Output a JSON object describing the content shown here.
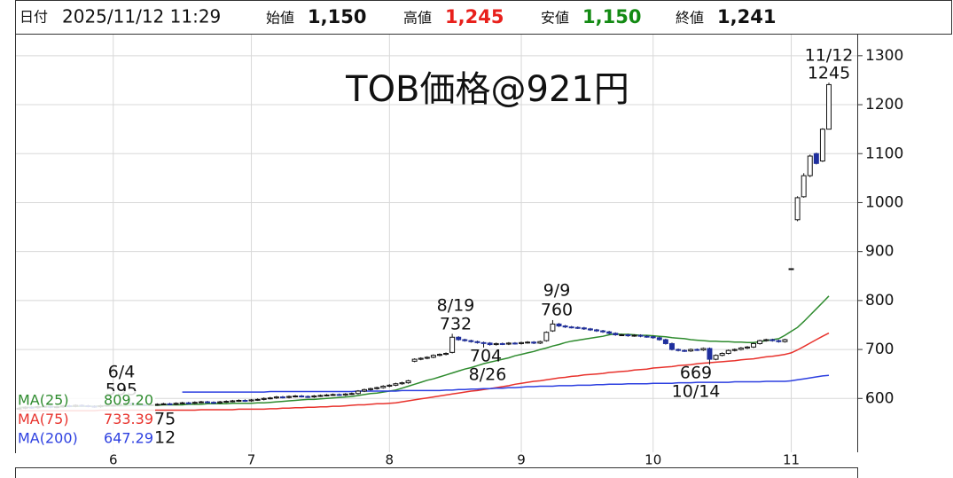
{
  "header": {
    "date_label": "日付",
    "date": "2025/11/12 11:29",
    "open_label": "始値",
    "open": "1,150",
    "high_label": "高値",
    "high": "1,245",
    "low_label": "安値",
    "low": "1,150",
    "close_label": "終値",
    "close": "1,241"
  },
  "chart_data": {
    "type": "candlestick",
    "title": "TOB価格@921円",
    "categories": [
      null,
      null,
      null,
      null,
      null,
      null,
      null,
      null,
      null,
      null,
      null,
      null,
      null,
      null,
      null,
      "6",
      null,
      null,
      null,
      null,
      null,
      null,
      null,
      null,
      null,
      null,
      null,
      null,
      null,
      null,
      null,
      null,
      null,
      null,
      null,
      null,
      null,
      "7",
      null,
      null,
      null,
      null,
      null,
      null,
      null,
      null,
      null,
      null,
      null,
      null,
      null,
      null,
      null,
      null,
      null,
      null,
      null,
      null,
      null,
      "8",
      null,
      null,
      null,
      null,
      null,
      null,
      null,
      null,
      null,
      null,
      null,
      null,
      null,
      null,
      null,
      null,
      null,
      null,
      null,
      null,
      "9",
      null,
      null,
      null,
      null,
      null,
      null,
      null,
      null,
      null,
      null,
      null,
      null,
      null,
      null,
      null,
      null,
      null,
      null,
      null,
      null,
      "10",
      null,
      null,
      null,
      null,
      null,
      null,
      null,
      null,
      null,
      null,
      null,
      null,
      null,
      null,
      null,
      null,
      null,
      null,
      null,
      null,
      null,
      "11",
      null,
      null,
      null,
      null,
      null,
      null
    ],
    "open": [
      579,
      580,
      582,
      581,
      583,
      584,
      582,
      583,
      585,
      584,
      586,
      585,
      584,
      583,
      585,
      586,
      586,
      588,
      590,
      588,
      587,
      586,
      587,
      588,
      589,
      588,
      590,
      591,
      590,
      592,
      593,
      592,
      591,
      593,
      594,
      595,
      596,
      595,
      597,
      598,
      600,
      601,
      603,
      602,
      604,
      605,
      604,
      603,
      605,
      606,
      607,
      608,
      607,
      609,
      610,
      615,
      618,
      620,
      622,
      625,
      627,
      630,
      632,
      676,
      680,
      682,
      684,
      688,
      690,
      694,
      725,
      720,
      718,
      716,
      714,
      713,
      710,
      712,
      711,
      713,
      712,
      714,
      715,
      713,
      718,
      738,
      752,
      748,
      746,
      745,
      744,
      742,
      740,
      738,
      736,
      733,
      730,
      730,
      728,
      729,
      727,
      726,
      724,
      720,
      712,
      700,
      698,
      697,
      700,
      699,
      702,
      680,
      688,
      692,
      698,
      700,
      703,
      705,
      712,
      718,
      720,
      718,
      716,
      865,
      965,
      1012,
      1055,
      1100,
      1085,
      1150
    ],
    "high": [
      582,
      584,
      584,
      585,
      586,
      586,
      585,
      587,
      587,
      588,
      588,
      587,
      586,
      587,
      588,
      588,
      590,
      595,
      592,
      590,
      589,
      589,
      590,
      591,
      591,
      592,
      593,
      593,
      594,
      595,
      595,
      594,
      595,
      596,
      597,
      598,
      598,
      599,
      600,
      602,
      603,
      605,
      605,
      606,
      607,
      607,
      606,
      607,
      608,
      609,
      610,
      610,
      611,
      612,
      617,
      620,
      622,
      624,
      627,
      629,
      632,
      634,
      638,
      682,
      684,
      686,
      690,
      692,
      694,
      732,
      727,
      722,
      720,
      718,
      716,
      715,
      714,
      714,
      715,
      715,
      716,
      717,
      717,
      718,
      737,
      760,
      754,
      750,
      748,
      747,
      746,
      744,
      742,
      740,
      738,
      735,
      732,
      732,
      731,
      731,
      729,
      728,
      726,
      722,
      714,
      702,
      700,
      702,
      702,
      704,
      704,
      690,
      694,
      700,
      702,
      705,
      707,
      714,
      720,
      722,
      722,
      720,
      722,
      865,
      1013,
      1060,
      1098,
      1102,
      1152,
      1245
    ],
    "low": [
      577,
      578,
      579,
      579,
      581,
      580,
      580,
      581,
      582,
      582,
      583,
      582,
      581,
      581,
      583,
      584,
      584,
      586,
      586,
      585,
      584,
      584,
      585,
      586,
      586,
      586,
      588,
      588,
      588,
      590,
      590,
      589,
      589,
      591,
      592,
      593,
      593,
      593,
      595,
      596,
      598,
      599,
      600,
      600,
      602,
      602,
      601,
      601,
      603,
      604,
      605,
      605,
      605,
      607,
      608,
      613,
      616,
      618,
      620,
      623,
      625,
      628,
      630,
      674,
      678,
      680,
      682,
      686,
      688,
      692,
      718,
      716,
      714,
      712,
      704,
      708,
      708,
      709,
      709,
      710,
      710,
      712,
      711,
      711,
      716,
      736,
      746,
      744,
      743,
      742,
      740,
      738,
      736,
      734,
      731,
      728,
      728,
      726,
      726,
      725,
      724,
      722,
      718,
      710,
      698,
      696,
      695,
      695,
      697,
      697,
      669,
      678,
      686,
      690,
      696,
      698,
      701,
      703,
      710,
      716,
      716,
      714,
      714,
      865,
      962,
      1010,
      1052,
      1078,
      1083,
      1150
    ],
    "close": [
      580,
      582,
      581,
      583,
      584,
      582,
      583,
      585,
      584,
      586,
      585,
      584,
      583,
      585,
      586,
      586,
      588,
      590,
      588,
      587,
      586,
      587,
      588,
      589,
      588,
      590,
      591,
      590,
      592,
      593,
      592,
      591,
      593,
      594,
      595,
      596,
      595,
      597,
      598,
      600,
      601,
      603,
      602,
      604,
      605,
      604,
      603,
      605,
      606,
      607,
      608,
      607,
      609,
      610,
      615,
      618,
      620,
      622,
      625,
      627,
      630,
      632,
      636,
      680,
      682,
      684,
      688,
      690,
      692,
      725,
      720,
      718,
      716,
      714,
      713,
      710,
      712,
      711,
      713,
      712,
      714,
      715,
      713,
      716,
      735,
      752,
      748,
      746,
      745,
      744,
      742,
      740,
      738,
      736,
      733,
      730,
      730,
      728,
      729,
      727,
      726,
      724,
      720,
      712,
      700,
      698,
      697,
      700,
      699,
      702,
      680,
      688,
      692,
      698,
      700,
      703,
      705,
      712,
      718,
      720,
      718,
      716,
      720,
      865,
      1010,
      1055,
      1095,
      1080,
      1150,
      1241
    ],
    "up_color": "#ffffff",
    "down_color": "#1f2f9e",
    "series": [
      {
        "name": "MA(25)",
        "color": "#2e8b2e",
        "legend_value": "809.20",
        "values": [
          582,
          582,
          582,
          583,
          583,
          583,
          583,
          583,
          584,
          584,
          584,
          584,
          584,
          585,
          585,
          585,
          585,
          585,
          586,
          586,
          586,
          586,
          586,
          587,
          587,
          587,
          587,
          588,
          588,
          588,
          589,
          589,
          589,
          589,
          590,
          590,
          590,
          590,
          591,
          591,
          592,
          593,
          594,
          595,
          596,
          597,
          598,
          598,
          599,
          600,
          601,
          602,
          603,
          604,
          606,
          608,
          610,
          611,
          613,
          615,
          617,
          621,
          625,
          629,
          633,
          637,
          640,
          644,
          648,
          652,
          656,
          660,
          663,
          667,
          671,
          674,
          677,
          680,
          683,
          687,
          690,
          693,
          696,
          700,
          703,
          707,
          710,
          714,
          717,
          719,
          721,
          723,
          725,
          727,
          730,
          732,
          731,
          731,
          730,
          729,
          729,
          728,
          727,
          726,
          724,
          723,
          722,
          720,
          719,
          718,
          717,
          717,
          716,
          716,
          715,
          715,
          714,
          714,
          716,
          718,
          720,
          722,
          729,
          737,
          745,
          757,
          770,
          783,
          796,
          809.2
        ]
      },
      {
        "name": "MA(75)",
        "color": "#e8322c",
        "legend_value": "733.39",
        "values": [
          575,
          575,
          575,
          575,
          575,
          575,
          575,
          575,
          575,
          575,
          575,
          575,
          575,
          576,
          576,
          576,
          576,
          576,
          576,
          576,
          576,
          576,
          576,
          576,
          576,
          576,
          576,
          576,
          576,
          577,
          577,
          577,
          577,
          577,
          577,
          578,
          578,
          578,
          578,
          578,
          579,
          579,
          580,
          580,
          581,
          581,
          582,
          582,
          583,
          583,
          584,
          584,
          585,
          586,
          587,
          587,
          588,
          589,
          589,
          590,
          591,
          593,
          595,
          597,
          599,
          601,
          603,
          605,
          607,
          609,
          611,
          613,
          615,
          616,
          618,
          620,
          622,
          624,
          626,
          629,
          631,
          633,
          635,
          636,
          638,
          640,
          642,
          643,
          645,
          646,
          648,
          649,
          650,
          651,
          653,
          654,
          655,
          656,
          658,
          659,
          660,
          662,
          663,
          664,
          665,
          667,
          668,
          669,
          671,
          672,
          673,
          674,
          675,
          676,
          677,
          679,
          680,
          681,
          683,
          685,
          686,
          688,
          690,
          693,
          699,
          706,
          713,
          720,
          727,
          733.39
        ]
      },
      {
        "name": "MA(200)",
        "color": "#2c3fe0",
        "legend_value": "647.29",
        "values": [
          null,
          null,
          null,
          null,
          null,
          null,
          null,
          null,
          null,
          null,
          null,
          null,
          null,
          null,
          null,
          null,
          null,
          null,
          null,
          null,
          null,
          null,
          null,
          null,
          null,
          null,
          613,
          613,
          613,
          613,
          613,
          613,
          613,
          613,
          613,
          613,
          613,
          613,
          613,
          613,
          614,
          614,
          614,
          614,
          614,
          614,
          614,
          614,
          614,
          614,
          614,
          614,
          614,
          614,
          615,
          615,
          615,
          615,
          615,
          615,
          615,
          616,
          616,
          616,
          616,
          616,
          616,
          616,
          617,
          617,
          618,
          618,
          619,
          619,
          620,
          620,
          621,
          621,
          622,
          622,
          623,
          624,
          624,
          625,
          625,
          625,
          626,
          626,
          626,
          627,
          627,
          627,
          628,
          628,
          629,
          629,
          629,
          630,
          630,
          630,
          630,
          631,
          631,
          631,
          631,
          632,
          632,
          632,
          633,
          633,
          633,
          633,
          633,
          633,
          634,
          634,
          634,
          634,
          634,
          635,
          635,
          635,
          635,
          636,
          638,
          640,
          642,
          644,
          646,
          647.29
        ]
      }
    ],
    "annotations": [
      "11/12",
      "1245",
      "9/9",
      "760",
      "8/19",
      "732",
      "704",
      "8/26",
      "669",
      "10/14",
      "6/4",
      "595",
      "75",
      "12"
    ],
    "ylim": [
      490,
      1345
    ],
    "yticks": [
      600,
      700,
      800,
      900,
      1000,
      1100,
      1200,
      1300
    ],
    "grid": true,
    "legend": "bottom-left"
  }
}
